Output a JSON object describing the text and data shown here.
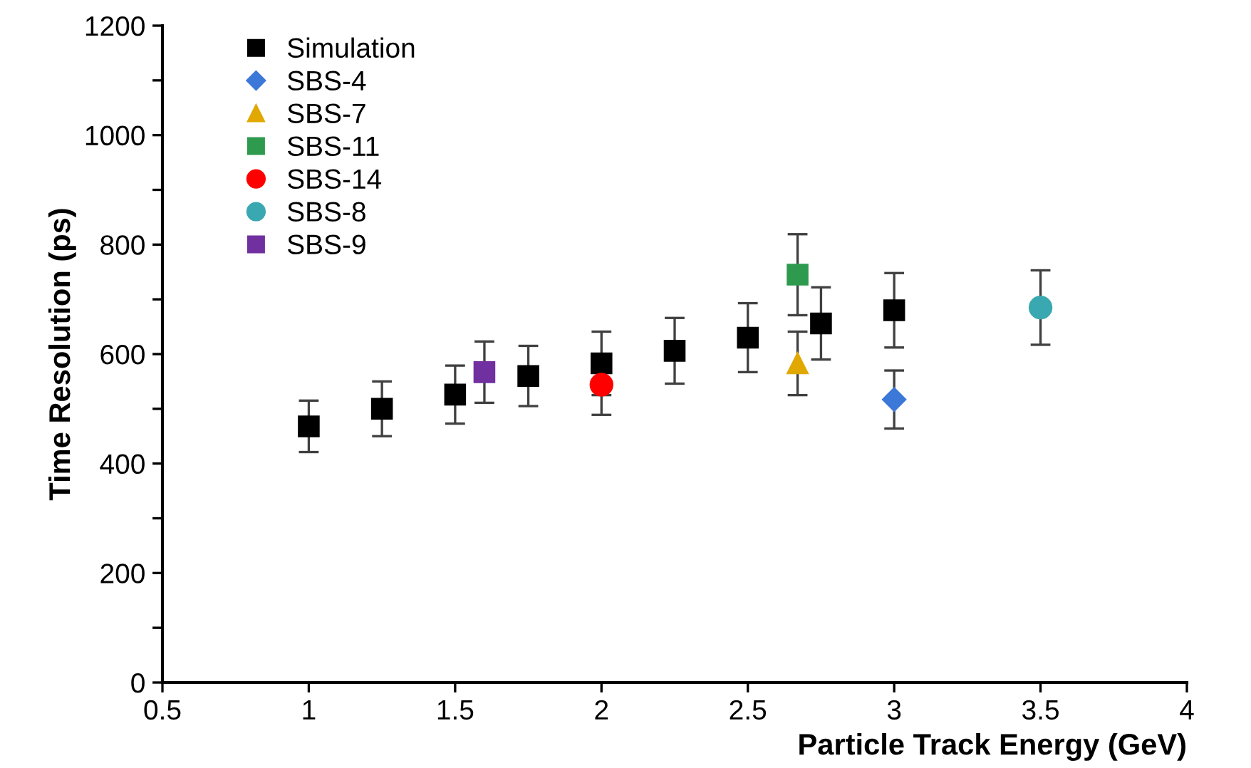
{
  "chart_data": {
    "type": "scatter",
    "xlabel": "Particle Track Energy (GeV)",
    "ylabel": "Time Resolution (ps)",
    "xlim": [
      0.5,
      4
    ],
    "xticks": [
      0.5,
      1,
      1.5,
      2,
      2.5,
      3,
      3.5,
      4
    ],
    "ylim": [
      0,
      1200
    ],
    "yticks": [
      0,
      {
        "value": 100,
        "label": null
      },
      200,
      {
        "value": 300,
        "label": null
      },
      400,
      {
        "value": 500,
        "label": null
      },
      600,
      {
        "value": 700,
        "label": null
      },
      800,
      {
        "value": 900,
        "label": null
      },
      1000,
      {
        "value": 1100,
        "label": null
      },
      1200
    ],
    "grid": false,
    "legend": "top left",
    "series": [
      {
        "name": "Simulation",
        "color": "#000000",
        "marker": "square",
        "x": [
          1,
          1.25,
          1.5,
          1.75,
          2,
          2.25,
          2.5,
          2.75,
          3
        ],
        "values": [
          468,
          500,
          526,
          560,
          583,
          606,
          630,
          656,
          680
        ],
        "errors": [
          47,
          50,
          53,
          55,
          58,
          60,
          63,
          66,
          68
        ]
      },
      {
        "name": "SBS-4",
        "color": "#3c78d8",
        "marker": "diamond",
        "x": [
          3
        ],
        "values": [
          517
        ],
        "errors": [
          53
        ]
      },
      {
        "name": "SBS-7",
        "color": "#e0a800",
        "marker": "triangle",
        "x": [
          2.67
        ],
        "values": [
          583
        ],
        "errors": [
          58
        ]
      },
      {
        "name": "SBS-11",
        "color": "#2e9a4e",
        "marker": "square",
        "x": [
          2.67
        ],
        "values": [
          745
        ],
        "errors": [
          74
        ]
      },
      {
        "name": "SBS-14",
        "color": "#ff0000",
        "marker": "circle",
        "x": [
          2
        ],
        "values": [
          544
        ],
        "errors": [
          55
        ]
      },
      {
        "name": "SBS-8",
        "color": "#3aa8b0",
        "marker": "circle",
        "x": [
          3.5
        ],
        "values": [
          685
        ],
        "errors": [
          68
        ]
      },
      {
        "name": "SBS-9",
        "color": "#7030a0",
        "marker": "square",
        "x": [
          1.6
        ],
        "values": [
          567
        ],
        "errors": [
          56
        ]
      }
    ]
  }
}
